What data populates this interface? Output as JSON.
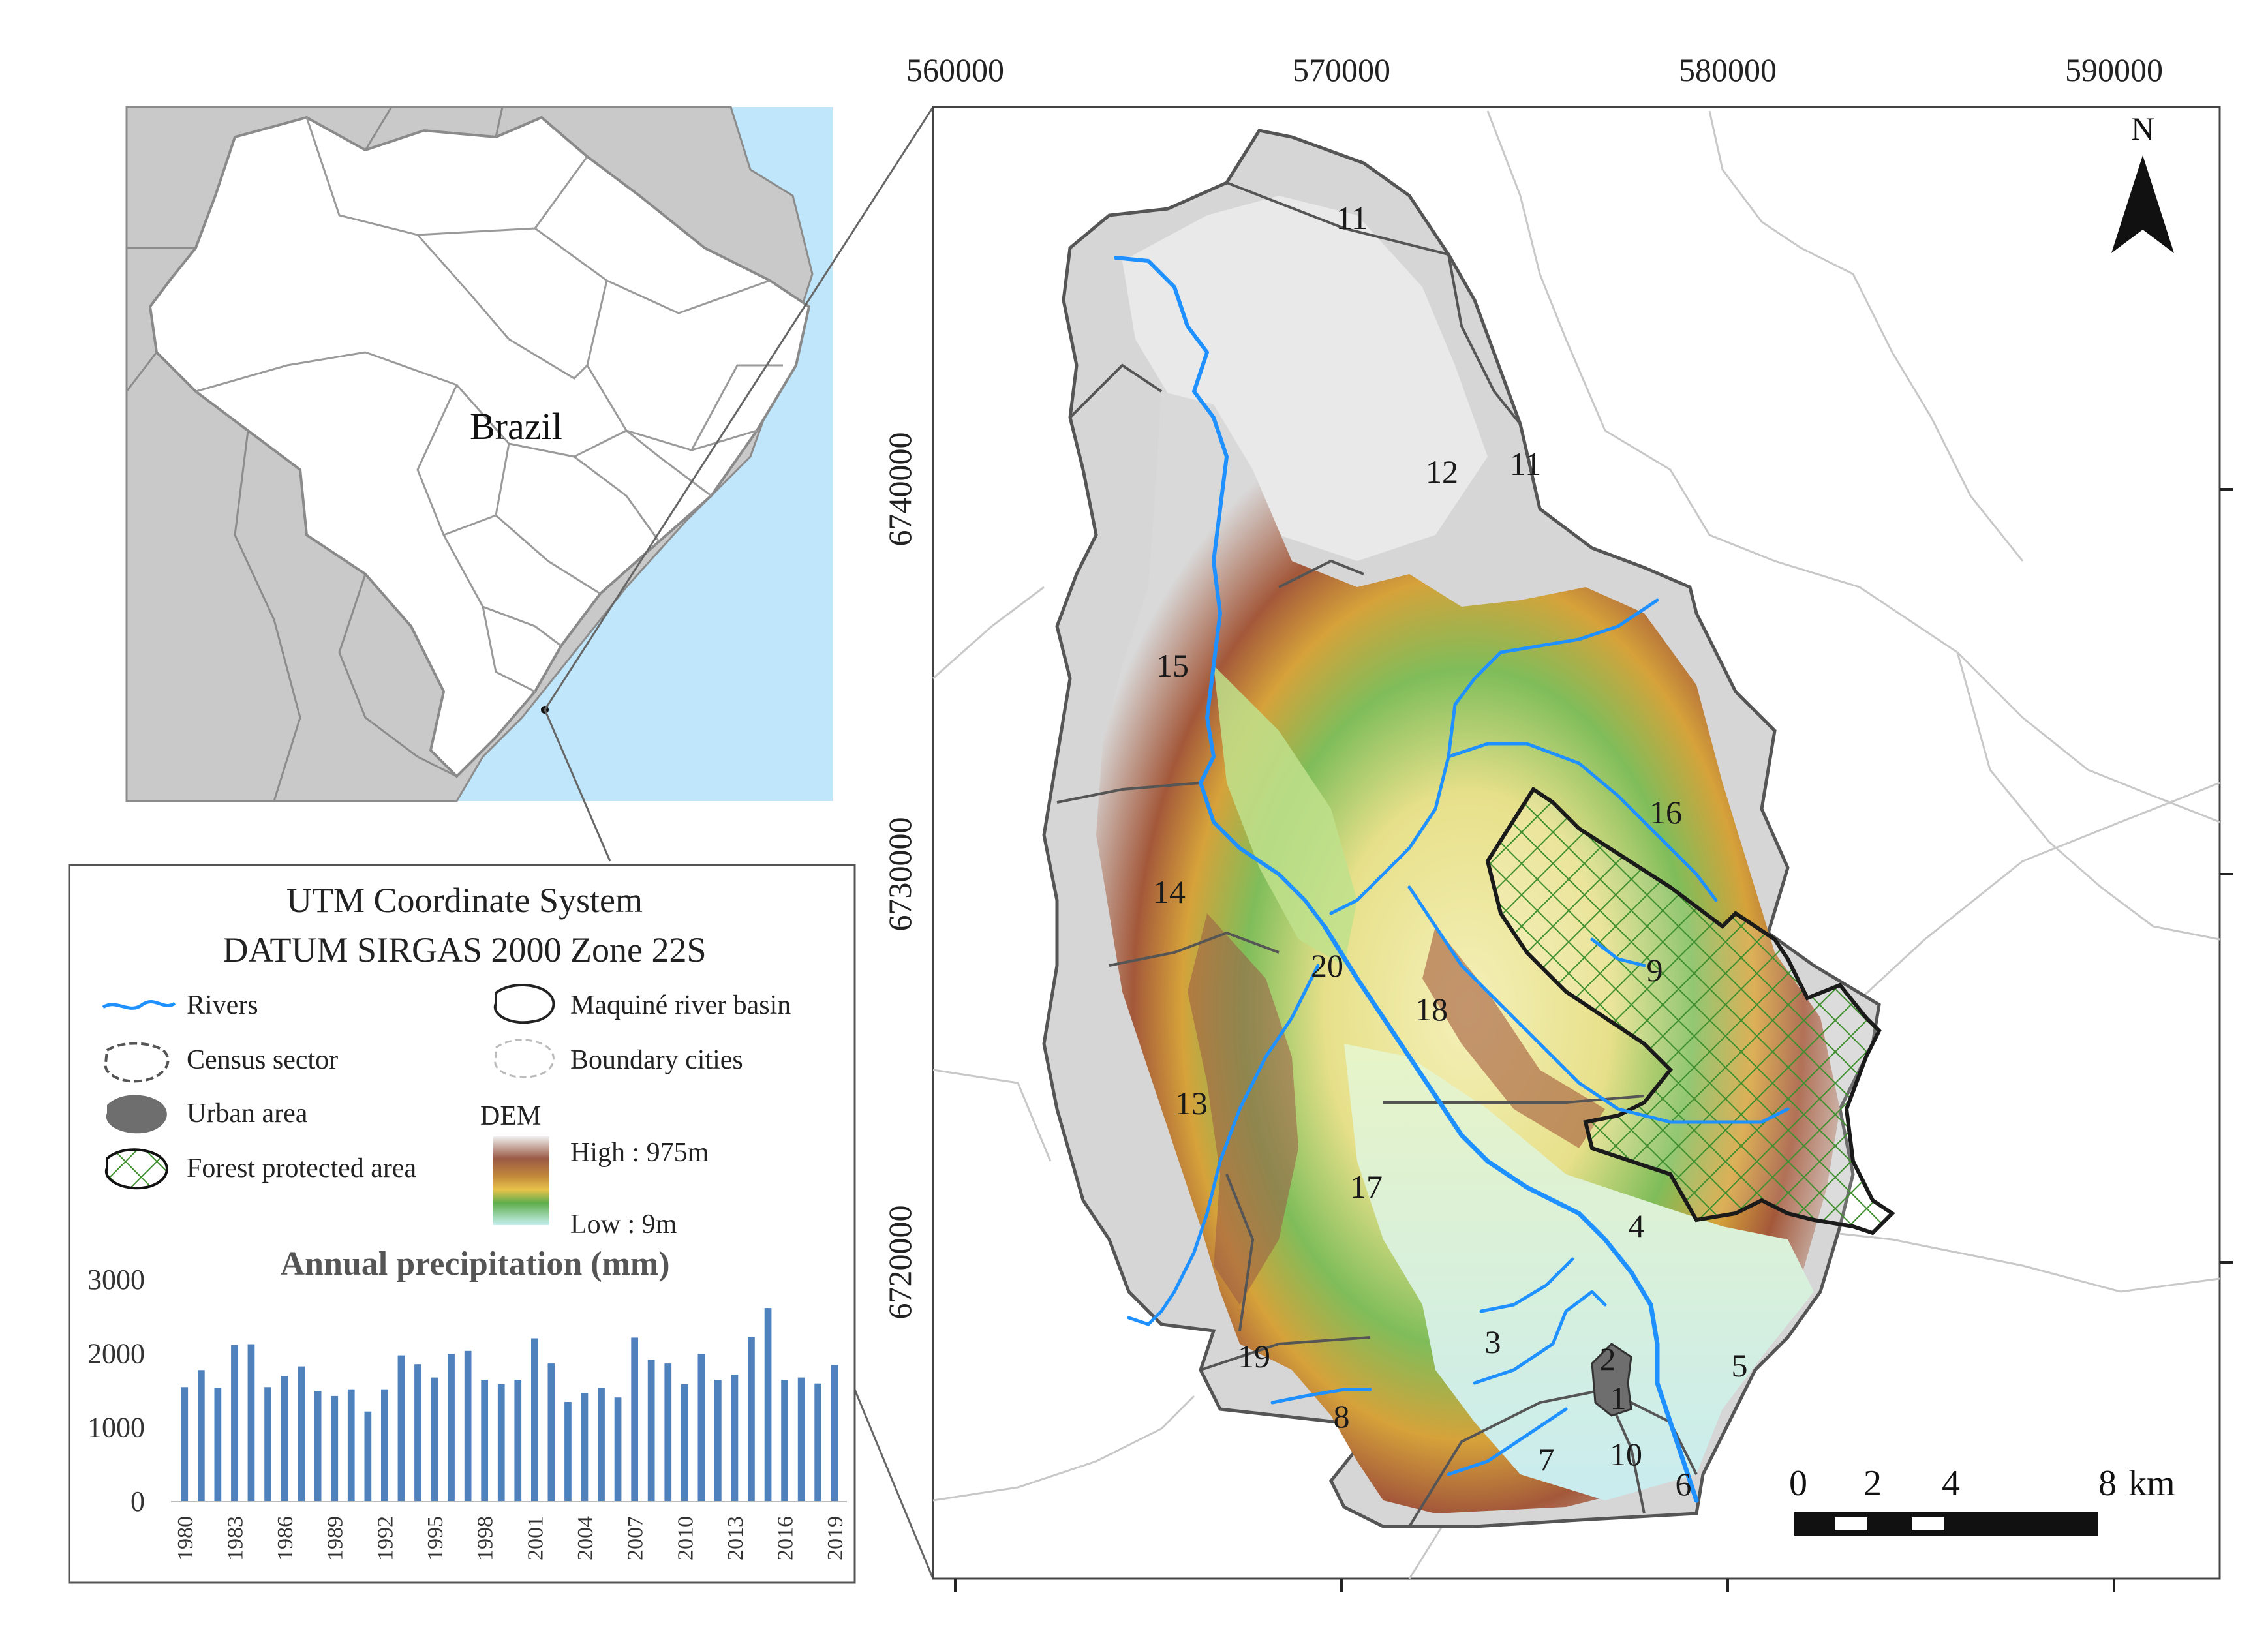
{
  "inset": {
    "country_label": "Brazil"
  },
  "map": {
    "x_ticks": [
      "560000",
      "570000",
      "580000",
      "590000"
    ],
    "y_ticks": [
      "6740000",
      "6730000",
      "6720000"
    ],
    "north_label": "N",
    "sectors": [
      "11",
      "11",
      "12",
      "15",
      "16",
      "14",
      "9",
      "20",
      "18",
      "13",
      "17",
      "4",
      "3",
      "19",
      "2",
      "1",
      "5",
      "8",
      "10",
      "7",
      "6"
    ],
    "scale_bar": {
      "labels": [
        "0",
        "2",
        "4",
        "8"
      ],
      "unit": "km"
    }
  },
  "legend": {
    "title_line1": "UTM Coordinate System",
    "title_line2": "DATUM SIRGAS 2000 Zone 22S",
    "items": {
      "rivers": "Rivers",
      "census": "Census sector",
      "urban": "Urban area",
      "forest": "Forest protected area",
      "basin": "Maquiné river basin",
      "boundary": "Boundary cities",
      "dem": "DEM",
      "high": "High : 975m",
      "low": "Low : 9m"
    }
  },
  "colors": {
    "ocean": "#bfe6fb",
    "land": "#c9c9c9",
    "river": "#1e90ff",
    "bar": "#4f81bd",
    "forest_hatch": "#3f8f2f"
  },
  "chart_data": {
    "type": "bar",
    "title": "Annual precipitation (mm)",
    "years": [
      1980,
      1981,
      1982,
      1983,
      1984,
      1985,
      1986,
      1987,
      1988,
      1989,
      1990,
      1991,
      1992,
      1993,
      1994,
      1995,
      1996,
      1997,
      1998,
      1999,
      2000,
      2001,
      2002,
      2003,
      2004,
      2005,
      2006,
      2007,
      2008,
      2009,
      2010,
      2011,
      2012,
      2013,
      2014,
      2015,
      2016,
      2017,
      2018,
      2019
    ],
    "tick_labels": [
      "1980",
      "1983",
      "1986",
      "1989",
      "1992",
      "1995",
      "1998",
      "2001",
      "2004",
      "2007",
      "2010",
      "2013",
      "2016",
      "2019"
    ],
    "values": [
      1550,
      1780,
      1540,
      2120,
      2130,
      1550,
      1700,
      1830,
      1500,
      1430,
      1520,
      1220,
      1520,
      1980,
      1860,
      1680,
      2000,
      2040,
      1650,
      1590,
      1650,
      2210,
      1870,
      1350,
      1470,
      1540,
      1410,
      2220,
      1920,
      1870,
      1590,
      2000,
      1650,
      1720,
      2230,
      2620,
      1650,
      1680,
      1600,
      1850
    ],
    "y_ticks": [
      "3000",
      "2000",
      "1000",
      "0"
    ],
    "ylim": [
      0,
      3000
    ]
  }
}
